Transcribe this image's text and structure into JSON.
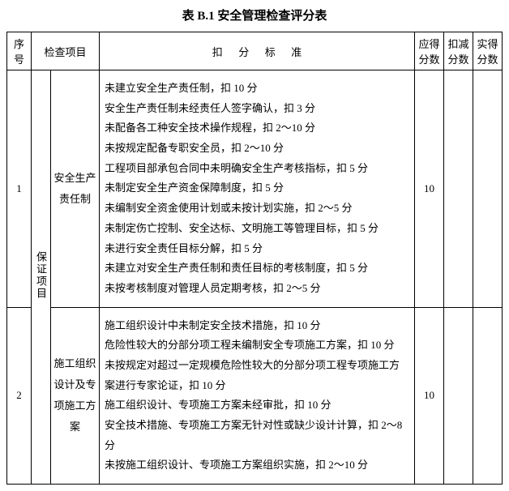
{
  "title": "表 B.1  安全管理检查评分表",
  "headers": {
    "seq": "序号",
    "inspect_item": "检查项目",
    "criteria": "扣分标准",
    "score_due": "应得分数",
    "score_deduct": "扣减分数",
    "score_actual": "实得分数"
  },
  "category": "保证项目",
  "rows": [
    {
      "seq": "1",
      "item": "安全生产责任制",
      "criteria": [
        "未建立安全生产责任制，扣 10 分",
        "安全生产责任制未经责任人签字确认，扣 3 分",
        "未配备各工种安全技术操作规程，扣 2～10 分",
        "未按规定配备专职安全员，扣 2～10 分",
        "工程项目部承包合同中未明确安全生产考核指标，扣 5 分",
        "未制定安全生产资金保障制度，扣 5 分",
        "未编制安全资金使用计划或未按计划实施，扣 2～5 分",
        "未制定伤亡控制、安全达标、文明施工等管理目标，扣 5 分",
        "未进行安全责任目标分解，扣 5 分",
        "未建立对安全生产责任制和责任目标的考核制度，扣 5 分",
        "未按考核制度对管理人员定期考核，扣 2～5 分"
      ],
      "score_due": "10"
    },
    {
      "seq": "2",
      "item": "施工组织设计及专项施工方案",
      "criteria": [
        "施工组织设计中未制定安全技术措施，扣 10 分",
        "危险性较大的分部分项工程未编制安全专项施工方案，扣 10 分",
        "未按规定对超过一定规模危险性较大的分部分项工程专项施工方案进行专家论证，扣 10 分",
        "施工组织设计、专项施工方案未经审批，扣 10 分",
        "安全技术措施、专项施工方案无针对性或缺少设计计算，扣 2～8 分",
        "未按施工组织设计、专项施工方案组织实施，扣 2～10 分"
      ],
      "score_due": "10"
    }
  ]
}
